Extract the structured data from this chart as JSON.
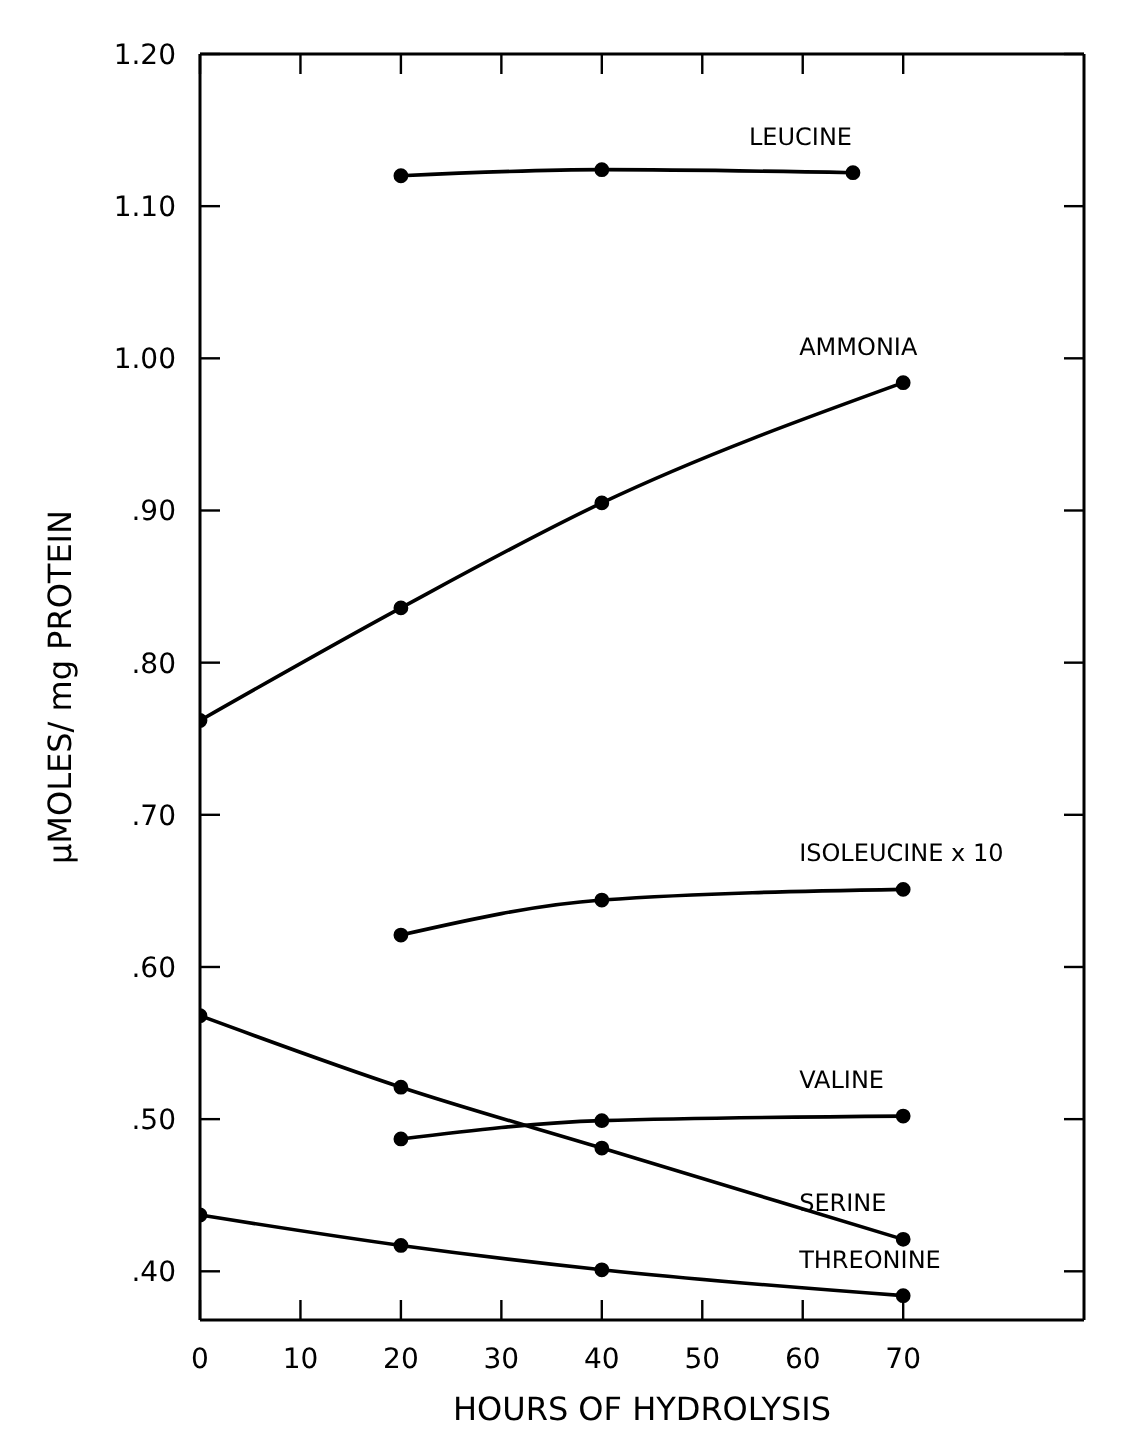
{
  "chart_data": {
    "type": "line",
    "xlabel": "HOURS OF HYDROLYSIS",
    "ylabel": "µMOLES/ mg PROTEIN",
    "xlim": [
      0,
      88
    ],
    "xticks": [
      0,
      10,
      20,
      30,
      40,
      50,
      60,
      70
    ],
    "ylim": [
      0.368,
      1.2
    ],
    "yticks": [
      {
        "value": 0.4,
        "label": ".40"
      },
      {
        "value": 0.5,
        "label": ".50"
      },
      {
        "value": 0.6,
        "label": ".60"
      },
      {
        "value": 0.7,
        "label": ".70"
      },
      {
        "value": 0.8,
        "label": ".80"
      },
      {
        "value": 0.9,
        "label": ".90"
      },
      {
        "value": 1.0,
        "label": "1.00"
      },
      {
        "value": 1.1,
        "label": "1.10"
      },
      {
        "value": 1.2,
        "label": "1.20"
      }
    ],
    "marker": "circle",
    "series": [
      {
        "name": "LEUCINE",
        "color": "#000000",
        "x": [
          20,
          40,
          65
        ],
        "values": [
          1.12,
          1.124,
          1.122
        ]
      },
      {
        "name": "AMMONIA",
        "color": "#000000",
        "x": [
          0,
          20,
          40,
          70
        ],
        "values": [
          0.762,
          0.836,
          0.905,
          0.984
        ]
      },
      {
        "name": "ISOLEUCINE x 10",
        "color": "#000000",
        "x": [
          20,
          40,
          70
        ],
        "values": [
          0.621,
          0.644,
          0.651
        ]
      },
      {
        "name": "VALINE",
        "color": "#000000",
        "x": [
          20,
          40,
          70
        ],
        "values": [
          0.487,
          0.499,
          0.502
        ]
      },
      {
        "name": "SERINE",
        "color": "#000000",
        "x": [
          0,
          20,
          40,
          70
        ],
        "values": [
          0.568,
          0.521,
          0.481,
          0.421
        ]
      },
      {
        "name": "THREONINE",
        "color": "#000000",
        "x": [
          0,
          20,
          40,
          70
        ],
        "values": [
          0.437,
          0.417,
          0.401,
          0.384
        ]
      }
    ]
  }
}
